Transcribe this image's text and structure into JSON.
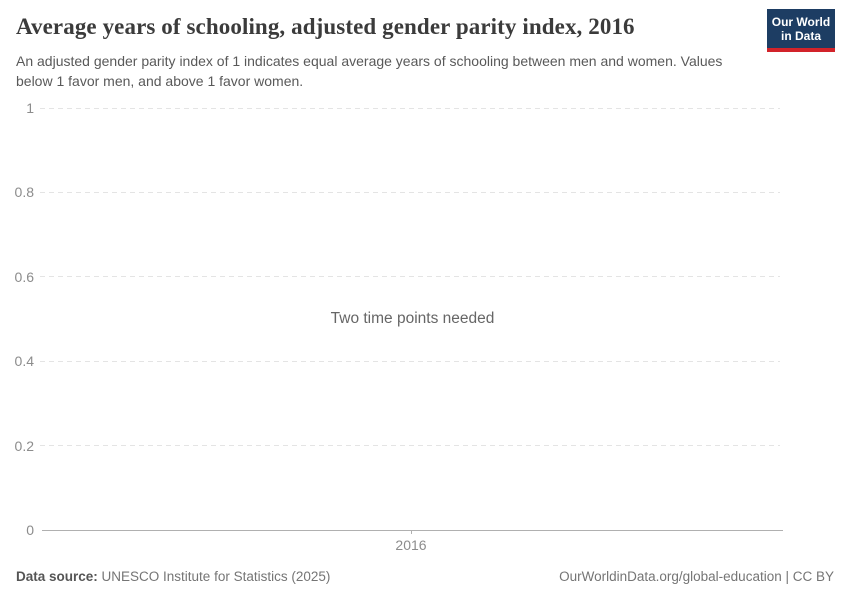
{
  "header": {
    "title": "Average years of schooling, adjusted gender parity index, 2016",
    "subtitle_line1": "An adjusted gender parity index of 1 indicates equal average years of schooling between men and women.",
    "subtitle_line2": "Values below 1 favor men, and above 1 favor women."
  },
  "logo": {
    "line1": "Our World",
    "line2": "in Data",
    "bg_color": "#1d3d63",
    "stripe_color": "#d2232a",
    "text_color": "#ffffff"
  },
  "chart_data": {
    "type": "line",
    "title": "Average years of schooling, adjusted gender parity index, 2016",
    "xlabel": "",
    "ylabel": "",
    "x_ticks": [
      "2016"
    ],
    "y_ticks": [
      "0",
      "0.2",
      "0.4",
      "0.6",
      "0.8",
      "1"
    ],
    "ylim": [
      0,
      1
    ],
    "series": [],
    "annotation": "Two time points needed",
    "grid": "horizontal-dashed",
    "legend": "none",
    "colors": {
      "gridline": "#e4e4e4",
      "axis_line": "#b0b0b0",
      "tick_label": "#8c8c8c",
      "annotation": "#666666"
    }
  },
  "footer": {
    "source_label": "Data source:",
    "source_text": " UNESCO Institute for Statistics (2025)",
    "link_text": "OurWorldinData.org/global-education | CC BY"
  }
}
